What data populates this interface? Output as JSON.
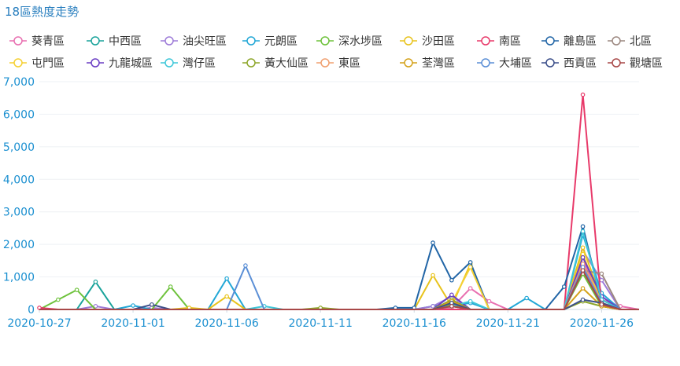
{
  "chart_data": {
    "type": "line",
    "title": "18區熱度走勢",
    "xlabel": "",
    "ylabel": "",
    "ylim": [
      0,
      7000
    ],
    "yticks": [
      "0",
      "1,000",
      "2,000",
      "3,000",
      "4,000",
      "5,000",
      "6,000",
      "7,000"
    ],
    "xticks": [
      "2020-10-27",
      "2020-11-01",
      "2020-11-06",
      "2020-11-11",
      "2020-11-16",
      "2020-11-21",
      "2020-11-26"
    ],
    "grid": true,
    "legend_position": "top",
    "categories": [
      "2020-10-27",
      "2020-10-28",
      "2020-10-29",
      "2020-10-30",
      "2020-10-31",
      "2020-11-01",
      "2020-11-02",
      "2020-11-03",
      "2020-11-04",
      "2020-11-05",
      "2020-11-06",
      "2020-11-07",
      "2020-11-08",
      "2020-11-09",
      "2020-11-10",
      "2020-11-11",
      "2020-11-12",
      "2020-11-13",
      "2020-11-14",
      "2020-11-15",
      "2020-11-16",
      "2020-11-17",
      "2020-11-18",
      "2020-11-19",
      "2020-11-20",
      "2020-11-21",
      "2020-11-22",
      "2020-11-23",
      "2020-11-24",
      "2020-11-25",
      "2020-11-26",
      "2020-11-27",
      "2020-11-28"
    ],
    "series": [
      {
        "name": "葵青區",
        "color": "#e86fb0",
        "values": [
          0,
          0,
          0,
          0,
          0,
          0,
          0,
          0,
          0,
          0,
          0,
          0,
          0,
          0,
          0,
          0,
          0,
          0,
          0,
          0,
          0,
          0,
          50,
          650,
          250,
          0,
          0,
          0,
          0,
          1500,
          300,
          100,
          0
        ]
      },
      {
        "name": "中西區",
        "color": "#1aa39b",
        "values": [
          0,
          0,
          0,
          850,
          0,
          0,
          0,
          0,
          0,
          0,
          0,
          0,
          0,
          0,
          0,
          0,
          0,
          0,
          0,
          0,
          0,
          100,
          150,
          0,
          0,
          0,
          0,
          0,
          0,
          1300,
          200,
          0,
          0
        ]
      },
      {
        "name": "油尖旺區",
        "color": "#9d7bd8",
        "values": [
          0,
          0,
          0,
          100,
          0,
          0,
          50,
          0,
          0,
          0,
          0,
          0,
          0,
          0,
          0,
          0,
          0,
          0,
          0,
          0,
          0,
          100,
          400,
          0,
          0,
          0,
          0,
          0,
          0,
          1800,
          900,
          0,
          0
        ]
      },
      {
        "name": "元朗區",
        "color": "#22a7d6",
        "values": [
          0,
          0,
          0,
          0,
          0,
          120,
          0,
          0,
          0,
          0,
          950,
          0,
          0,
          0,
          0,
          0,
          0,
          0,
          0,
          0,
          0,
          0,
          100,
          200,
          0,
          0,
          350,
          0,
          0,
          2300,
          500,
          0,
          0
        ]
      },
      {
        "name": "深水埗區",
        "color": "#6ec23c",
        "values": [
          0,
          300,
          600,
          0,
          0,
          0,
          0,
          700,
          0,
          0,
          0,
          0,
          0,
          0,
          0,
          0,
          0,
          0,
          0,
          0,
          0,
          0,
          150,
          0,
          0,
          0,
          0,
          0,
          0,
          1100,
          100,
          0,
          0
        ]
      },
      {
        "name": "沙田區",
        "color": "#e8c31c",
        "values": [
          0,
          0,
          0,
          0,
          0,
          0,
          0,
          0,
          50,
          0,
          400,
          0,
          0,
          0,
          0,
          0,
          0,
          0,
          0,
          0,
          0,
          1050,
          100,
          1400,
          0,
          0,
          0,
          0,
          0,
          1900,
          300,
          0,
          0
        ]
      },
      {
        "name": "南區",
        "color": "#e83a6a",
        "values": [
          50,
          0,
          0,
          0,
          0,
          0,
          0,
          0,
          0,
          0,
          0,
          0,
          0,
          0,
          0,
          0,
          0,
          0,
          0,
          0,
          0,
          0,
          0,
          0,
          0,
          0,
          0,
          0,
          0,
          6600,
          100,
          0,
          0
        ]
      },
      {
        "name": "離島區",
        "color": "#2165a6",
        "values": [
          0,
          0,
          0,
          0,
          0,
          0,
          0,
          0,
          0,
          0,
          0,
          0,
          0,
          0,
          0,
          0,
          0,
          0,
          0,
          50,
          50,
          2050,
          900,
          1450,
          0,
          0,
          0,
          0,
          700,
          2550,
          200,
          0,
          0
        ]
      },
      {
        "name": "北區",
        "color": "#9c8880",
        "values": [
          0,
          0,
          0,
          0,
          0,
          0,
          0,
          0,
          0,
          0,
          0,
          0,
          0,
          0,
          0,
          0,
          0,
          0,
          0,
          0,
          0,
          0,
          100,
          0,
          0,
          0,
          0,
          0,
          0,
          1200,
          1100,
          0,
          0
        ]
      },
      {
        "name": "屯門區",
        "color": "#f5d033",
        "values": [
          0,
          0,
          0,
          0,
          0,
          0,
          0,
          0,
          0,
          0,
          0,
          0,
          0,
          0,
          0,
          0,
          0,
          0,
          0,
          0,
          0,
          0,
          200,
          1300,
          0,
          0,
          0,
          0,
          0,
          1700,
          200,
          0,
          0
        ]
      },
      {
        "name": "九龍城區",
        "color": "#6b3fc4",
        "values": [
          0,
          0,
          0,
          0,
          0,
          0,
          0,
          0,
          0,
          0,
          0,
          0,
          0,
          0,
          0,
          0,
          0,
          0,
          0,
          0,
          0,
          0,
          450,
          0,
          0,
          0,
          0,
          0,
          0,
          1600,
          400,
          0,
          0
        ]
      },
      {
        "name": "灣仔區",
        "color": "#3fc7d9",
        "values": [
          0,
          0,
          0,
          0,
          0,
          0,
          0,
          0,
          0,
          0,
          0,
          0,
          100,
          0,
          0,
          0,
          0,
          0,
          0,
          0,
          0,
          0,
          100,
          250,
          0,
          0,
          0,
          0,
          0,
          2400,
          300,
          0,
          0
        ]
      },
      {
        "name": "黃大仙區",
        "color": "#8da62a",
        "values": [
          0,
          0,
          0,
          0,
          0,
          0,
          0,
          0,
          0,
          0,
          0,
          0,
          0,
          0,
          0,
          50,
          0,
          0,
          0,
          0,
          0,
          0,
          300,
          0,
          0,
          0,
          0,
          0,
          0,
          250,
          100,
          0,
          0
        ]
      },
      {
        "name": "東區",
        "color": "#f0a070",
        "values": [
          0,
          0,
          0,
          0,
          0,
          0,
          0,
          0,
          0,
          0,
          0,
          0,
          0,
          0,
          0,
          0,
          0,
          0,
          0,
          0,
          0,
          0,
          100,
          0,
          0,
          0,
          0,
          0,
          0,
          1400,
          200,
          0,
          0
        ]
      },
      {
        "name": "荃灣區",
        "color": "#d4a21a",
        "values": [
          0,
          0,
          0,
          0,
          0,
          0,
          0,
          0,
          0,
          0,
          0,
          0,
          0,
          0,
          0,
          0,
          0,
          0,
          0,
          0,
          0,
          0,
          250,
          0,
          0,
          0,
          0,
          0,
          0,
          650,
          100,
          0,
          0
        ]
      },
      {
        "name": "大埔區",
        "color": "#5b8fd6",
        "values": [
          0,
          0,
          0,
          0,
          0,
          0,
          0,
          0,
          0,
          0,
          0,
          1350,
          0,
          0,
          0,
          0,
          0,
          0,
          0,
          0,
          0,
          0,
          100,
          0,
          0,
          0,
          0,
          0,
          0,
          1300,
          200,
          0,
          0
        ]
      },
      {
        "name": "西貢區",
        "color": "#3c4f8a",
        "values": [
          0,
          0,
          0,
          0,
          0,
          0,
          150,
          0,
          0,
          0,
          0,
          0,
          0,
          0,
          0,
          0,
          0,
          0,
          0,
          0,
          0,
          0,
          200,
          0,
          0,
          0,
          0,
          0,
          0,
          300,
          200,
          0,
          0
        ]
      },
      {
        "name": "觀塘區",
        "color": "#a84848",
        "values": [
          0,
          0,
          0,
          0,
          0,
          0,
          0,
          0,
          0,
          0,
          0,
          0,
          0,
          0,
          0,
          0,
          0,
          0,
          0,
          0,
          0,
          0,
          100,
          0,
          0,
          0,
          0,
          0,
          0,
          1200,
          150,
          0,
          0
        ]
      }
    ]
  }
}
